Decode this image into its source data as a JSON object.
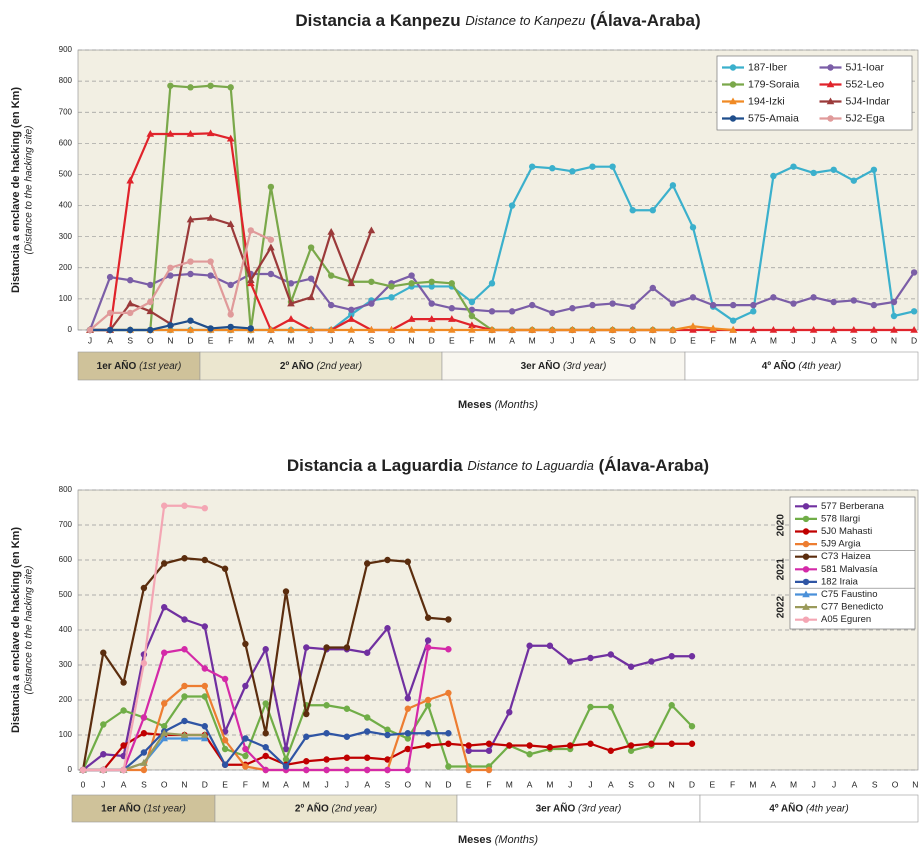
{
  "chart_data": [
    {
      "type": "line",
      "title": "Distancia a Kanpezu",
      "title_en": "Distance to Kanpezu",
      "title_region": "(Álava-Araba)",
      "ylabel": "Distancia a enclave de hacking (en Km)",
      "ylabel_en": "(Distance to the hacking site)",
      "xlabel": "Meses",
      "xlabel_en": "(Months)",
      "years": [
        {
          "label": "1er AÑO",
          "en": "(1st year)"
        },
        {
          "label": "2º AÑO",
          "en": "(2nd year)"
        },
        {
          "label": "3er AÑO",
          "en": "(3rd year)"
        },
        {
          "label": "4º AÑO",
          "en": "(4th year)"
        }
      ],
      "categories": [
        "J",
        "A",
        "S",
        "O",
        "N",
        "D",
        "E",
        "F",
        "M",
        "A",
        "M",
        "J",
        "J",
        "A",
        "S",
        "O",
        "N",
        "D",
        "E",
        "F",
        "M",
        "A",
        "M",
        "J",
        "J",
        "A",
        "S",
        "O",
        "N",
        "D",
        "E",
        "F",
        "M",
        "A",
        "M",
        "J",
        "J",
        "A",
        "S",
        "O",
        "N",
        "D"
      ],
      "ylim": [
        0,
        900
      ],
      "yticks": [
        0,
        100,
        200,
        300,
        400,
        500,
        600,
        700,
        800,
        900
      ],
      "grid": true,
      "legend": "top-right",
      "series": [
        {
          "name": "187-Iber",
          "color": "#3bb0cc",
          "marker": "circle",
          "values": [
            0,
            0,
            0,
            0,
            0,
            0,
            0,
            0,
            0,
            0,
            0,
            0,
            0,
            50,
            95,
            105,
            140,
            140,
            140,
            90,
            150,
            400,
            525,
            520,
            510,
            525,
            525,
            385,
            385,
            465,
            330,
            75,
            30,
            60,
            495,
            525,
            505,
            515,
            480,
            515,
            45,
            60
          ]
        },
        {
          "name": "5J1-Ioar",
          "color": "#7b5ea7",
          "marker": "circle",
          "values": [
            0,
            170,
            160,
            145,
            175,
            180,
            175,
            145,
            180,
            180,
            150,
            165,
            80,
            65,
            85,
            150,
            175,
            85,
            70,
            65,
            60,
            60,
            80,
            55,
            70,
            80,
            85,
            75,
            135,
            85,
            105,
            80,
            80,
            80,
            105,
            85,
            105,
            90,
            95,
            80,
            90,
            185
          ]
        },
        {
          "name": "179-Soraia",
          "color": "#7aa84a",
          "marker": "circle",
          "values": [
            0,
            0,
            0,
            0,
            785,
            780,
            785,
            780,
            0,
            460,
            90,
            265,
            175,
            155,
            155,
            140,
            150,
            155,
            150,
            45,
            0,
            0,
            0,
            0,
            0,
            0,
            0,
            0,
            0,
            0,
            null,
            null,
            null,
            null,
            null,
            null,
            null,
            null,
            null,
            null,
            null,
            null
          ]
        },
        {
          "name": "552-Leo",
          "color": "#e0232b",
          "marker": "triangle",
          "values": [
            0,
            0,
            480,
            630,
            630,
            630,
            632,
            615,
            150,
            0,
            35,
            0,
            0,
            35,
            0,
            0,
            35,
            35,
            35,
            15,
            0,
            0,
            0,
            0,
            0,
            0,
            0,
            0,
            0,
            0,
            0,
            0,
            0,
            0,
            0,
            0,
            0,
            0,
            0,
            0,
            0,
            0
          ]
        },
        {
          "name": "194-Izki",
          "color": "#f08a24",
          "marker": "triangle",
          "values": [
            0,
            0,
            0,
            0,
            0,
            0,
            0,
            0,
            0,
            0,
            0,
            0,
            0,
            0,
            0,
            0,
            0,
            0,
            0,
            0,
            0,
            0,
            0,
            0,
            0,
            0,
            0,
            0,
            0,
            0,
            12,
            5,
            0,
            null,
            null,
            null,
            null,
            null,
            null,
            null,
            null,
            null
          ]
        },
        {
          "name": "5J4-Indar",
          "color": "#9b3a3a",
          "marker": "triangle",
          "values": [
            0,
            0,
            85,
            60,
            20,
            355,
            360,
            340,
            160,
            265,
            85,
            105,
            315,
            150,
            320,
            null,
            null,
            null,
            null,
            null,
            null,
            null,
            null,
            null,
            null,
            null,
            null,
            null,
            null,
            null,
            null,
            null,
            null,
            null,
            null,
            null,
            null,
            null,
            null,
            null,
            null,
            null
          ]
        },
        {
          "name": "575-Amaia",
          "color": "#1f4e8c",
          "marker": "circle",
          "values": [
            0,
            0,
            0,
            0,
            15,
            30,
            5,
            10,
            5,
            null,
            null,
            null,
            null,
            null,
            null,
            null,
            null,
            null,
            null,
            null,
            null,
            null,
            null,
            null,
            null,
            null,
            null,
            null,
            null,
            null,
            null,
            null,
            null,
            null,
            null,
            null,
            null,
            null,
            null,
            null,
            null,
            null
          ]
        },
        {
          "name": "5J2-Ega",
          "color": "#e09a9a",
          "marker": "circle",
          "values": [
            0,
            55,
            55,
            90,
            200,
            220,
            220,
            50,
            320,
            290,
            null,
            null,
            null,
            null,
            null,
            null,
            null,
            null,
            null,
            null,
            null,
            null,
            null,
            null,
            null,
            null,
            null,
            null,
            null,
            null,
            null,
            null,
            null,
            null,
            null,
            null,
            null,
            null,
            null,
            null,
            null,
            null
          ]
        }
      ]
    },
    {
      "type": "line",
      "title": "Distancia a Laguardia",
      "title_en": "Distance to Laguardia",
      "title_region": "(Álava-Araba)",
      "ylabel": "Distancia a enclave de hacking (en Km)",
      "ylabel_en": "(Distance to the hacking site)",
      "xlabel": "Meses",
      "xlabel_en": "(Months)",
      "years": [
        {
          "label": "1er AÑO",
          "en": "(1st year)"
        },
        {
          "label": "2º AÑO",
          "en": "(2nd year)"
        },
        {
          "label": "3er AÑO",
          "en": "(3rd year)"
        },
        {
          "label": "4º AÑO",
          "en": "(4th year)"
        }
      ],
      "legend_years": [
        "2020",
        "2021",
        "2022"
      ],
      "categories": [
        "0",
        "J",
        "A",
        "S",
        "O",
        "N",
        "D",
        "E",
        "F",
        "M",
        "A",
        "M",
        "J",
        "J",
        "A",
        "S",
        "O",
        "N",
        "D",
        "E",
        "F",
        "M",
        "A",
        "M",
        "J",
        "J",
        "A",
        "S",
        "O",
        "N",
        "D",
        "E",
        "F",
        "M",
        "A",
        "M",
        "J",
        "J",
        "A",
        "S",
        "O",
        "N"
      ],
      "ylim": [
        0,
        800
      ],
      "yticks": [
        0,
        100,
        200,
        300,
        400,
        500,
        600,
        700,
        800
      ],
      "grid": true,
      "legend": "top-right",
      "series": [
        {
          "name": "577 Berberana",
          "color": "#7030a0",
          "marker": "circle",
          "values": [
            0,
            45,
            40,
            330,
            465,
            430,
            410,
            110,
            240,
            345,
            60,
            350,
            345,
            345,
            335,
            405,
            205,
            370,
            null,
            55,
            55,
            165,
            355,
            355,
            310,
            320,
            330,
            295,
            310,
            325,
            325,
            null,
            null,
            null,
            null,
            null,
            null,
            null,
            null,
            null,
            null,
            null
          ]
        },
        {
          "name": "578 Ilargi",
          "color": "#70ad47",
          "marker": "circle",
          "values": [
            0,
            130,
            170,
            150,
            125,
            210,
            210,
            60,
            40,
            190,
            30,
            185,
            185,
            175,
            150,
            115,
            90,
            185,
            10,
            10,
            10,
            70,
            45,
            60,
            60,
            180,
            180,
            55,
            70,
            185,
            125,
            null,
            null,
            null,
            null,
            null,
            null,
            null,
            null,
            null,
            null,
            null
          ]
        },
        {
          "name": "5J0 Mahasti",
          "color": "#c00000",
          "marker": "circle",
          "values": [
            0,
            0,
            70,
            105,
            100,
            100,
            100,
            15,
            15,
            40,
            15,
            25,
            30,
            35,
            35,
            30,
            60,
            70,
            75,
            70,
            75,
            70,
            70,
            65,
            70,
            75,
            55,
            70,
            75,
            75,
            75,
            null,
            null,
            null,
            null,
            null,
            null,
            null,
            null,
            null,
            null,
            null
          ]
        },
        {
          "name": "5J9 Argia",
          "color": "#ed7d31",
          "marker": "circle",
          "values": [
            0,
            0,
            0,
            0,
            190,
            240,
            240,
            85,
            10,
            0,
            0,
            0,
            0,
            0,
            0,
            0,
            175,
            200,
            220,
            0,
            0,
            null,
            null,
            null,
            null,
            null,
            null,
            null,
            null,
            null,
            null,
            null,
            null,
            null,
            null,
            null,
            null,
            null,
            null,
            null,
            null,
            null
          ]
        },
        {
          "name": "C73 Haizea",
          "color": "#5b2d0e",
          "marker": "circle",
          "values": [
            0,
            335,
            250,
            520,
            590,
            605,
            600,
            575,
            360,
            105,
            510,
            160,
            350,
            350,
            590,
            600,
            595,
            435,
            430,
            null,
            null,
            null,
            null,
            null,
            null,
            null,
            null,
            null,
            null,
            null,
            null,
            null,
            null,
            null,
            null,
            null,
            null,
            null,
            null,
            null,
            null,
            null
          ]
        },
        {
          "name": "581 Malvasía",
          "color": "#d42aa8",
          "marker": "circle",
          "values": [
            0,
            0,
            0,
            150,
            335,
            345,
            290,
            260,
            60,
            0,
            0,
            0,
            0,
            0,
            0,
            0,
            0,
            350,
            345,
            null,
            null,
            null,
            null,
            null,
            null,
            null,
            null,
            null,
            null,
            null,
            null,
            null,
            null,
            null,
            null,
            null,
            null,
            null,
            null,
            null,
            null,
            null
          ]
        },
        {
          "name": "182 Iraia",
          "color": "#2f55a4",
          "marker": "circle",
          "values": [
            0,
            0,
            0,
            50,
            110,
            140,
            125,
            15,
            90,
            65,
            10,
            95,
            105,
            95,
            110,
            100,
            105,
            105,
            105,
            null,
            null,
            null,
            null,
            null,
            null,
            null,
            null,
            null,
            null,
            null,
            null,
            null,
            null,
            null,
            null,
            null,
            null,
            null,
            null,
            null,
            null,
            null
          ]
        },
        {
          "name": "C75 Faustino",
          "color": "#4a90d9",
          "marker": "triangle",
          "values": [
            0,
            0,
            0,
            20,
            90,
            90,
            90,
            null,
            null,
            null,
            null,
            null,
            null,
            null,
            null,
            null,
            null,
            null,
            null,
            null,
            null,
            null,
            null,
            null,
            null,
            null,
            null,
            null,
            null,
            null,
            null,
            null,
            null,
            null,
            null,
            null,
            null,
            null,
            null,
            null,
            null,
            null
          ]
        },
        {
          "name": "C77 Benedicto",
          "color": "#9a9a5a",
          "marker": "triangle",
          "values": [
            0,
            0,
            0,
            20,
            105,
            100,
            100,
            null,
            null,
            null,
            null,
            null,
            null,
            null,
            null,
            null,
            null,
            null,
            null,
            null,
            null,
            null,
            null,
            null,
            null,
            null,
            null,
            null,
            null,
            null,
            null,
            null,
            null,
            null,
            null,
            null,
            null,
            null,
            null,
            null,
            null,
            null
          ]
        },
        {
          "name": "A05 Eguren",
          "color": "#f4a6b4",
          "marker": "circle",
          "values": [
            0,
            0,
            0,
            305,
            755,
            755,
            748,
            null,
            null,
            null,
            null,
            null,
            null,
            null,
            null,
            null,
            null,
            null,
            null,
            null,
            null,
            null,
            null,
            null,
            null,
            null,
            null,
            null,
            null,
            null,
            null,
            null,
            null,
            null,
            null,
            null,
            null,
            null,
            null,
            null,
            null,
            null
          ]
        }
      ]
    }
  ]
}
